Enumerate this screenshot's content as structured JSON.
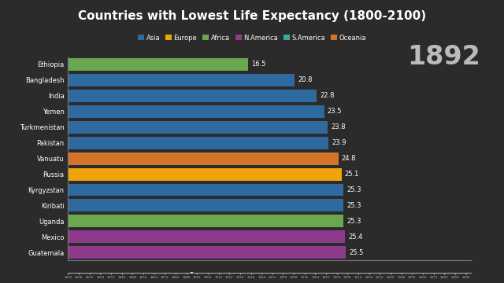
{
  "chart_data": [
    {
      "type": "bar",
      "title": "Countries with Lowest Life Expectancy (1800-2100)",
      "orientation": "horizontal",
      "categories": [
        "Ethiopia",
        "Bangladesh",
        "India",
        "Yemen",
        "Turkmenistan",
        "Pakistan",
        "Vanuatu",
        "Russia",
        "Kyrgyzstan",
        "Kiribati",
        "Uganda",
        "Mexico",
        "Guatemala"
      ],
      "values": [
        16.5,
        20.8,
        22.8,
        23.5,
        23.8,
        23.9,
        24.8,
        25.1,
        25.3,
        25.3,
        25.3,
        25.4,
        25.5
      ],
      "colors": [
        "#6aa84f",
        "#2e6a9e",
        "#2e6a9e",
        "#2e6a9e",
        "#2e6a9e",
        "#2e6a9e",
        "#d2742a",
        "#f0a30a",
        "#2e6a9e",
        "#2e6a9e",
        "#6aa84f",
        "#8e3b8e",
        "#8e3b8e"
      ],
      "regions": [
        {
          "name": "Asia",
          "color": "#2e6a9e"
        },
        {
          "name": "Europe",
          "color": "#f0a30a"
        },
        {
          "name": "Africa",
          "color": "#6aa84f"
        },
        {
          "name": "N.America",
          "color": "#8e3b8e"
        },
        {
          "name": "S.America",
          "color": "#3aa6a0"
        },
        {
          "name": "Oceania",
          "color": "#d2742a"
        }
      ],
      "legend": "upper center",
      "annotation": "1892",
      "xlim": [
        0,
        37
      ],
      "data_labels": true,
      "tick_labels": "y"
    },
    {
      "type": "timeline",
      "xlim": [
        1800,
        2100
      ],
      "xticks": [
        1800,
        1808,
        1816,
        1824,
        1832,
        1840,
        1848,
        1856,
        1864,
        1872,
        1880,
        1888,
        1896,
        1904,
        1912,
        1920,
        1928,
        1936,
        1944,
        1952,
        1960,
        1968,
        1976,
        1984,
        1992,
        2000,
        2008,
        2016,
        2024,
        2032,
        2040,
        2048,
        2056,
        2064,
        2072,
        2080,
        2088,
        2096
      ],
      "values": [
        1892
      ],
      "marker": "triangle",
      "tick_labels": "x"
    }
  ]
}
